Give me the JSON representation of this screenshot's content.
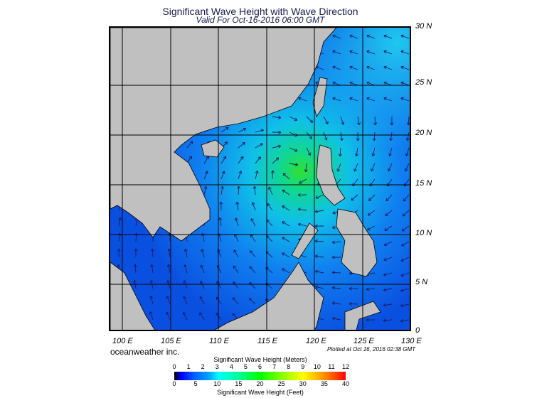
{
  "title": "Significant Wave Height with Wave Direction",
  "subtitle": "Valid For Oct-16-2016 06:00 GMT",
  "lat_labels": [
    "30 N",
    "25 N",
    "20 N",
    "15 N",
    "10 N",
    "5 N",
    "0"
  ],
  "lon_labels": [
    "100 E",
    "105 E",
    "110 E",
    "115 E",
    "120 E",
    "125 E",
    "130 E"
  ],
  "brand": "oceanweather inc.",
  "plotted": "Plotted at Oct 16, 2016 02:38 GMT",
  "colorbar": {
    "meters_title": "Significant Wave Height (Meters)",
    "meters_ticks": [
      "0",
      "1",
      "2",
      "3",
      "4",
      "5",
      "6",
      "7",
      "8",
      "9",
      "10",
      "11",
      "12"
    ],
    "feet_title": "Significant Wave Height (Feet)",
    "feet_ticks": [
      "0",
      "5",
      "10",
      "15",
      "20",
      "25",
      "30",
      "35",
      "40"
    ],
    "colors": [
      "#000000",
      "#0000ff",
      "#00a0ff",
      "#00ffff",
      "#00ff00",
      "#ffff00",
      "#ff6000",
      "#ff0000"
    ]
  },
  "map": {
    "land_color": "#c0c0c0",
    "sea_color": "#0a5ae6",
    "peak_color": "#30e030",
    "arrow_color": "#1a1a60"
  }
}
